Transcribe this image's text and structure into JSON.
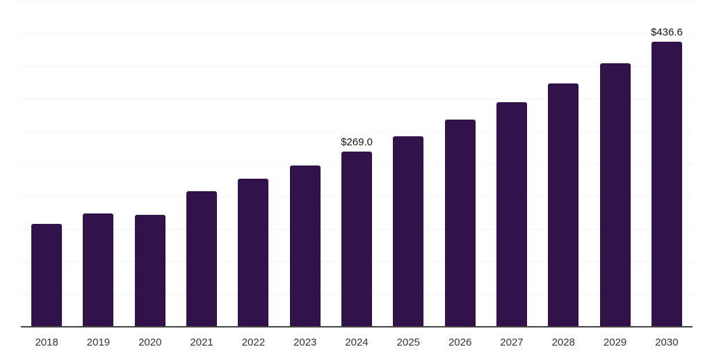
{
  "chart_data": {
    "type": "bar",
    "categories": [
      "2018",
      "2019",
      "2020",
      "2021",
      "2022",
      "2023",
      "2024",
      "2025",
      "2026",
      "2027",
      "2028",
      "2029",
      "2030"
    ],
    "values": [
      158,
      174,
      172,
      208,
      227,
      247,
      269.0,
      292,
      318,
      344,
      373,
      404,
      436.6
    ],
    "data_labels": [
      "",
      "",
      "",
      "",
      "",
      "",
      "$269.0",
      "",
      "",
      "",
      "",
      "",
      "$436.6"
    ],
    "title": "",
    "xlabel": "",
    "ylabel": "",
    "ylim": [
      0,
      500
    ],
    "grid": {
      "visible": true,
      "interval": 50,
      "y_tick_labels_visible": false
    },
    "legend_position": "none"
  },
  "style": {
    "bar_color": "#32124B",
    "grid_color": "#f2f2f2",
    "axis_line_color": "#454545",
    "tick_label_color": "#333333",
    "data_label_color": "#141414",
    "background_color": "#ffffff"
  }
}
